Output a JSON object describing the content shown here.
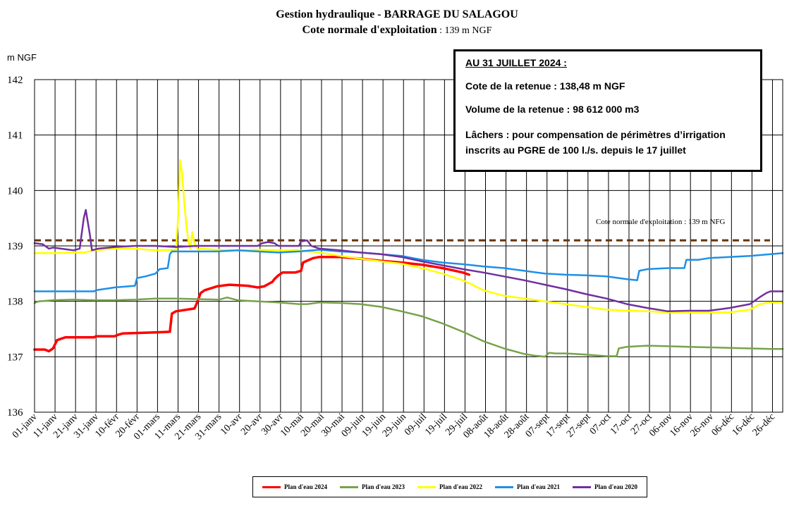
{
  "title": {
    "line1": "Gestion hydraulique - BARRAGE DU SALAGOU",
    "line2_prefix": "Cote normale d'exploitation",
    "line2_value": " : 139 m NGF"
  },
  "info_box": {
    "date": "AU 31 JUILLET 2024 :",
    "cote": "Cote de la retenue : 138,48 m NGF",
    "volume": "Volume de la retenue : 98 612 000 m3",
    "lachers_1": "Lâchers : pour compensation de périmètres d’irrigation",
    "lachers_2": "inscrits au PGRE de 100 l./s. depuis le 17 juillet"
  },
  "chart_data": {
    "type": "line",
    "title": "",
    "xlabel": "",
    "ylabel": "m NGF",
    "ylim": [
      136,
      142
    ],
    "yticks": [
      136,
      137,
      138,
      139,
      140,
      141,
      142
    ],
    "x_unit": "day of year",
    "xlim": [
      1,
      366
    ],
    "x_ticks": [
      1,
      11,
      21,
      31,
      41,
      51,
      61,
      71,
      81,
      91,
      101,
      111,
      121,
      131,
      141,
      151,
      161,
      171,
      181,
      191,
      201,
      211,
      221,
      231,
      241,
      251,
      261,
      271,
      281,
      291,
      301,
      311,
      321,
      331,
      341,
      351,
      361
    ],
    "x_tick_labels": [
      "01-janv",
      "11-janv",
      "21-janv",
      "31-janv",
      "10-févr",
      "20-févr",
      "01-mars",
      "11-mars",
      "21-mars",
      "31-mars",
      "10-avr",
      "20-avr",
      "30-avr",
      "10-mai",
      "20-mai",
      "30-mai",
      "09-juin",
      "19-juin",
      "29-juin",
      "09-juil",
      "19-juil",
      "29-juil",
      "08-août",
      "18-août",
      "28-août",
      "07-sept",
      "17-sept",
      "27-sept",
      "07-oct",
      "17-oct",
      "27-oct",
      "06-nov",
      "16-nov",
      "26-nov",
      "06-déc",
      "16-déc",
      "26-déc"
    ],
    "grid": true,
    "legend_position": "bottom",
    "reference_line": {
      "value": 139.1,
      "label": "Cote normale d'exploitation : 139 m NFG",
      "color": "#663300"
    },
    "series": [
      {
        "name": "Plan d'eau 2024",
        "color": "#ff0000",
        "width": 3.5,
        "x": [
          1,
          6,
          8,
          10,
          12,
          16,
          30,
          31,
          40,
          42,
          44,
          60,
          67,
          68,
          70,
          79,
          80,
          82,
          84,
          90,
          96,
          105,
          110,
          113,
          117,
          118,
          120,
          122,
          128,
          131,
          132,
          135,
          137,
          140,
          150,
          160,
          170,
          180,
          190,
          200,
          210,
          213
        ],
        "y": [
          137.13,
          137.13,
          137.1,
          137.15,
          137.3,
          137.35,
          137.35,
          137.37,
          137.37,
          137.4,
          137.42,
          137.44,
          137.45,
          137.78,
          137.82,
          137.87,
          137.95,
          138.15,
          138.2,
          138.27,
          138.3,
          138.28,
          138.25,
          138.27,
          138.35,
          138.4,
          138.47,
          138.52,
          138.52,
          138.55,
          138.7,
          138.75,
          138.78,
          138.8,
          138.8,
          138.77,
          138.73,
          138.7,
          138.66,
          138.6,
          138.52,
          138.48
        ]
      },
      {
        "name": "Plan d'eau 2023",
        "color": "#77a34a",
        "width": 2.5,
        "x": [
          1,
          3,
          10,
          20,
          30,
          40,
          50,
          60,
          70,
          80,
          91,
          95,
          100,
          110,
          120,
          130,
          134,
          140,
          150,
          160,
          170,
          180,
          190,
          200,
          210,
          220,
          230,
          240,
          245,
          250,
          252,
          255,
          260,
          265,
          270,
          280,
          285,
          286,
          290,
          300,
          310,
          320,
          330,
          340,
          350,
          360,
          366
        ],
        "y": [
          137.97,
          138.0,
          138.02,
          138.03,
          138.02,
          138.02,
          138.03,
          138.05,
          138.05,
          138.04,
          138.03,
          138.07,
          138.02,
          138.0,
          137.98,
          137.95,
          137.95,
          137.98,
          137.97,
          137.95,
          137.9,
          137.82,
          137.73,
          137.6,
          137.45,
          137.28,
          137.15,
          137.05,
          137.02,
          137.0,
          137.07,
          137.06,
          137.06,
          137.05,
          137.04,
          137.01,
          137.01,
          137.15,
          137.18,
          137.2,
          137.19,
          137.18,
          137.17,
          137.16,
          137.15,
          137.14,
          137.14
        ]
      },
      {
        "name": "Plan d'eau 2022",
        "color": "#ffff00",
        "width": 2.5,
        "x": [
          1,
          10,
          20,
          25,
          30,
          40,
          50,
          60,
          70,
          71,
          72,
          73,
          74,
          75,
          76,
          77,
          78,
          79,
          80,
          81,
          82,
          90,
          100,
          110,
          120,
          130,
          140,
          150,
          160,
          170,
          180,
          190,
          200,
          210,
          220,
          230,
          240,
          250,
          260,
          270,
          280,
          290,
          300,
          310,
          320,
          330,
          340,
          350,
          355,
          360,
          366
        ],
        "y": [
          138.87,
          138.87,
          138.88,
          138.88,
          138.92,
          138.95,
          138.95,
          138.92,
          138.93,
          139.5,
          140.55,
          140.3,
          139.8,
          139.4,
          139.1,
          138.95,
          139.25,
          139.05,
          138.98,
          138.93,
          138.95,
          138.93,
          138.92,
          138.93,
          138.92,
          138.92,
          138.88,
          138.82,
          138.77,
          138.72,
          138.68,
          138.6,
          138.5,
          138.38,
          138.2,
          138.1,
          138.05,
          138.0,
          137.95,
          137.9,
          137.85,
          137.83,
          137.82,
          137.8,
          137.8,
          137.8,
          137.8,
          137.85,
          137.95,
          137.98,
          137.98
        ]
      },
      {
        "name": "Plan d'eau 2021",
        "color": "#1e90e8",
        "width": 2.5,
        "x": [
          1,
          10,
          20,
          30,
          31,
          40,
          50,
          51,
          55,
          60,
          62,
          66,
          67,
          68,
          70,
          80,
          90,
          100,
          110,
          120,
          130,
          140,
          150,
          160,
          170,
          180,
          190,
          200,
          210,
          220,
          230,
          240,
          250,
          260,
          270,
          280,
          290,
          295,
          296,
          300,
          310,
          318,
          319,
          325,
          330,
          340,
          350,
          360,
          366
        ],
        "y": [
          138.18,
          138.18,
          138.18,
          138.18,
          138.2,
          138.25,
          138.28,
          138.42,
          138.45,
          138.5,
          138.58,
          138.6,
          138.85,
          138.9,
          138.9,
          138.9,
          138.9,
          138.92,
          138.9,
          138.88,
          138.9,
          138.93,
          138.9,
          138.88,
          138.85,
          138.82,
          138.75,
          138.7,
          138.67,
          138.63,
          138.6,
          138.55,
          138.5,
          138.48,
          138.47,
          138.45,
          138.4,
          138.38,
          138.55,
          138.58,
          138.6,
          138.6,
          138.75,
          138.75,
          138.78,
          138.8,
          138.82,
          138.85,
          138.87
        ]
      },
      {
        "name": "Plan d'eau 2020",
        "color": "#7030a0",
        "width": 2.5,
        "x": [
          1,
          5,
          8,
          10,
          20,
          23,
          25,
          26,
          28,
          29,
          32,
          40,
          50,
          60,
          70,
          80,
          90,
          100,
          110,
          112,
          115,
          118,
          120,
          130,
          131,
          134,
          136,
          140,
          150,
          160,
          170,
          180,
          190,
          200,
          210,
          220,
          230,
          240,
          250,
          260,
          270,
          280,
          290,
          300,
          310,
          320,
          330,
          340,
          350,
          355,
          358,
          360,
          366
        ],
        "y": [
          139.05,
          139.03,
          138.95,
          138.97,
          138.92,
          138.95,
          139.5,
          139.65,
          139.2,
          138.92,
          138.95,
          138.98,
          139.0,
          139.0,
          138.98,
          139.0,
          139.0,
          139.0,
          139.0,
          139.05,
          139.07,
          139.05,
          139.0,
          139.0,
          139.08,
          139.1,
          139.0,
          138.95,
          138.92,
          138.88,
          138.85,
          138.8,
          138.72,
          138.65,
          138.58,
          138.52,
          138.45,
          138.38,
          138.3,
          138.22,
          138.13,
          138.05,
          137.95,
          137.88,
          137.82,
          137.83,
          137.83,
          137.88,
          137.95,
          138.08,
          138.15,
          138.18,
          138.18
        ]
      }
    ]
  }
}
